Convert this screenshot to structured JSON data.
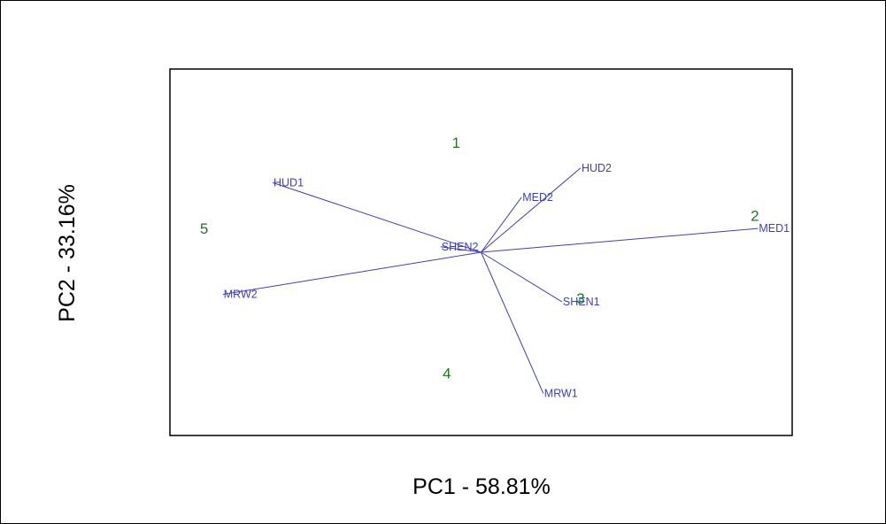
{
  "chart_data": {
    "type": "biplot",
    "xlabel": "PC1 - 58.81%",
    "ylabel": "PC2 - 33.16%",
    "xlim": [
      -1.0,
      1.0
    ],
    "ylim": [
      -1.0,
      1.0
    ],
    "grid": false,
    "colors": {
      "loadings": "#4040b0",
      "observations": "#1e7a1e",
      "frame": "#000000"
    },
    "origin": [
      0.0,
      0.0
    ],
    "loadings": [
      {
        "name": "HUD1",
        "x": -0.67,
        "y": 0.38
      },
      {
        "name": "HUD2",
        "x": 0.32,
        "y": 0.46
      },
      {
        "name": "MED2",
        "x": 0.13,
        "y": 0.3
      },
      {
        "name": "MED1",
        "x": 0.89,
        "y": 0.13
      },
      {
        "name": "SHEN2",
        "x": -0.13,
        "y": 0.03
      },
      {
        "name": "SHEN1",
        "x": 0.26,
        "y": -0.27
      },
      {
        "name": "MRW2",
        "x": -0.83,
        "y": -0.23
      },
      {
        "name": "MRW1",
        "x": 0.2,
        "y": -0.77
      }
    ],
    "observations": [
      {
        "name": "1",
        "x": -0.08,
        "y": 0.6
      },
      {
        "name": "2",
        "x": 0.88,
        "y": 0.2
      },
      {
        "name": "3",
        "x": 0.32,
        "y": -0.25
      },
      {
        "name": "4",
        "x": -0.11,
        "y": -0.66
      },
      {
        "name": "5",
        "x": -0.89,
        "y": 0.13
      }
    ]
  }
}
